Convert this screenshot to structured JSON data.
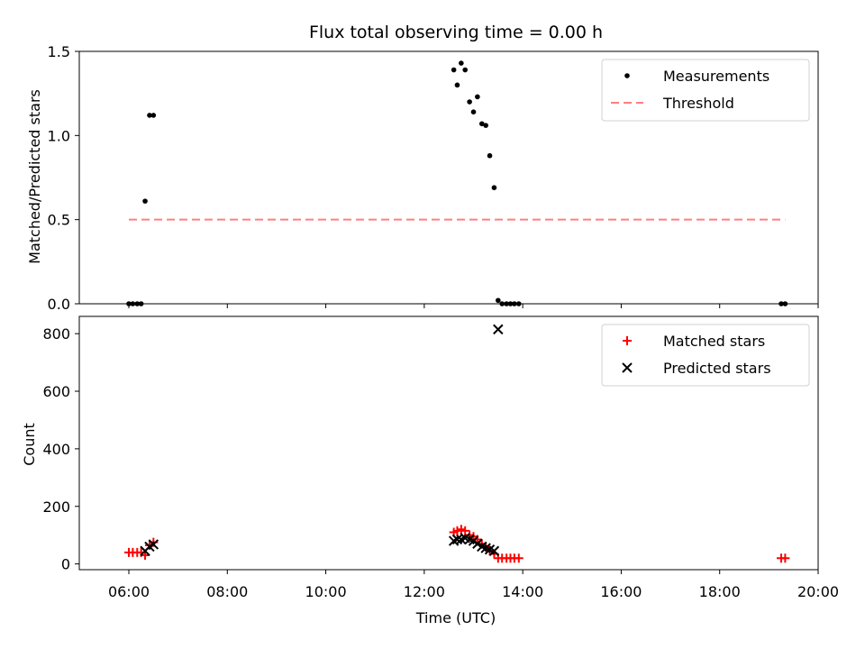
{
  "chart_data": [
    {
      "type": "scatter",
      "title": "Flux total observing time = 0.00 h",
      "ylabel": "Matched/Predicted stars",
      "xlabel": "",
      "xlim": [
        5.7,
        20.0
      ],
      "ylim": [
        0,
        1.5
      ],
      "yticks": [
        "0.0",
        "0.5",
        "1.0",
        "1.5"
      ],
      "legend_position": "top-right",
      "legend": [
        "Measurements",
        "Threshold"
      ],
      "series": [
        {
          "name": "Measurements",
          "marker": "dot",
          "color": "#000000",
          "points": [
            [
              6.0,
              0.0
            ],
            [
              6.08,
              0.0
            ],
            [
              6.17,
              0.0
            ],
            [
              6.25,
              0.0
            ],
            [
              6.33,
              0.61
            ],
            [
              6.42,
              1.12
            ],
            [
              6.5,
              1.12
            ],
            [
              12.6,
              1.39
            ],
            [
              12.67,
              1.3
            ],
            [
              12.75,
              1.43
            ],
            [
              12.83,
              1.39
            ],
            [
              12.92,
              1.2
            ],
            [
              13.0,
              1.14
            ],
            [
              13.08,
              1.23
            ],
            [
              13.17,
              1.07
            ],
            [
              13.25,
              1.06
            ],
            [
              13.33,
              0.88
            ],
            [
              13.42,
              0.69
            ],
            [
              13.5,
              0.02
            ],
            [
              13.58,
              0.0
            ],
            [
              13.67,
              0.0
            ],
            [
              13.75,
              0.0
            ],
            [
              13.83,
              0.0
            ],
            [
              13.92,
              0.0
            ],
            [
              19.25,
              0.0
            ],
            [
              19.33,
              0.0
            ]
          ]
        },
        {
          "name": "Threshold",
          "type": "line",
          "style": "dashed",
          "color": "#ff7f7f",
          "x": [
            6.0,
            19.33
          ],
          "y": [
            0.5,
            0.5
          ]
        }
      ]
    },
    {
      "type": "scatter",
      "title": "",
      "ylabel": "Count",
      "xlabel": "Time (UTC)",
      "xlim": [
        5.7,
        20.0
      ],
      "ylim": [
        -20,
        860
      ],
      "yticks": [
        "0",
        "200",
        "400",
        "600",
        "800"
      ],
      "xticks": [
        "06:00",
        "08:00",
        "10:00",
        "12:00",
        "14:00",
        "16:00",
        "18:00",
        "20:00"
      ],
      "legend_position": "top-right",
      "legend": [
        "Matched stars",
        "Predicted stars"
      ],
      "series": [
        {
          "name": "Matched stars",
          "marker": "plus",
          "color": "#ff0000",
          "points": [
            [
              6.0,
              40
            ],
            [
              6.08,
              40
            ],
            [
              6.17,
              40
            ],
            [
              6.25,
              40
            ],
            [
              6.33,
              30
            ],
            [
              6.42,
              65
            ],
            [
              6.5,
              75
            ],
            [
              12.6,
              110
            ],
            [
              12.67,
              115
            ],
            [
              12.75,
              120
            ],
            [
              12.83,
              115
            ],
            [
              12.92,
              100
            ],
            [
              13.0,
              95
            ],
            [
              13.08,
              85
            ],
            [
              13.17,
              70
            ],
            [
              13.25,
              60
            ],
            [
              13.33,
              45
            ],
            [
              13.42,
              35
            ],
            [
              13.5,
              20
            ],
            [
              13.58,
              20
            ],
            [
              13.67,
              20
            ],
            [
              13.75,
              20
            ],
            [
              13.83,
              20
            ],
            [
              13.92,
              20
            ],
            [
              19.25,
              20
            ],
            [
              19.33,
              20
            ]
          ]
        },
        {
          "name": "Predicted stars",
          "marker": "x",
          "color": "#000000",
          "points": [
            [
              6.33,
              45
            ],
            [
              6.42,
              60
            ],
            [
              6.5,
              68
            ],
            [
              12.6,
              80
            ],
            [
              12.67,
              85
            ],
            [
              12.75,
              85
            ],
            [
              12.83,
              90
            ],
            [
              12.92,
              85
            ],
            [
              13.0,
              80
            ],
            [
              13.08,
              70
            ],
            [
              13.17,
              60
            ],
            [
              13.25,
              55
            ],
            [
              13.33,
              50
            ],
            [
              13.42,
              45
            ],
            [
              13.5,
              815
            ]
          ]
        }
      ]
    }
  ]
}
